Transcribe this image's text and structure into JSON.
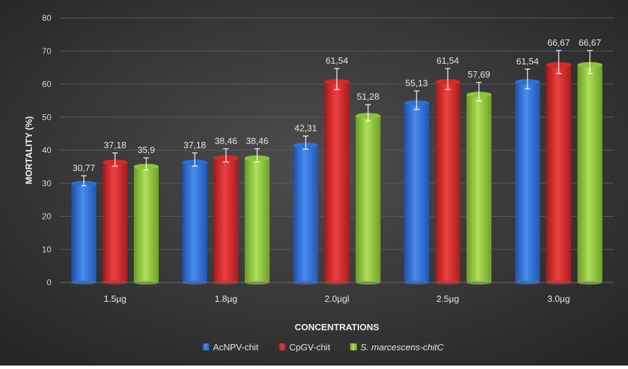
{
  "chart_data": {
    "type": "bar",
    "title": "",
    "xlabel": "CONCENTRATIONS",
    "ylabel": "MORTALITY (%)",
    "ylim": [
      0,
      80
    ],
    "yticks": [
      0,
      10,
      20,
      30,
      40,
      50,
      60,
      70,
      80
    ],
    "grid": "horizontal",
    "legend_position": "bottom",
    "categories": [
      "1.5µg",
      "1.8µg",
      "2.0µgl",
      "2.5µg",
      "3.0µg"
    ],
    "series": [
      {
        "name": "AcNPV-chit",
        "color": "#2f6fd6",
        "values": [
          30.77,
          37.18,
          42.31,
          55.13,
          61.54
        ],
        "labels": [
          "30,77",
          "37,18",
          "42,31",
          "55,13",
          "61,54"
        ],
        "error": [
          1.5,
          2.0,
          2.0,
          2.8,
          3.0
        ]
      },
      {
        "name": "CpGV-chit",
        "color": "#d42a2a",
        "values": [
          37.18,
          38.46,
          61.54,
          61.54,
          66.67
        ],
        "labels": [
          "37,18",
          "38,46",
          "61,54",
          "61,54",
          "66,67"
        ],
        "error": [
          2.0,
          2.0,
          3.2,
          3.2,
          3.5
        ]
      },
      {
        "name": "S. marcescens-chitC",
        "name_italic": true,
        "color": "#8fc33a",
        "values": [
          35.9,
          38.46,
          51.28,
          57.69,
          66.67
        ],
        "labels": [
          "35,9",
          "38,46",
          "51,28",
          "57,69",
          "66,67"
        ],
        "error": [
          1.8,
          2.0,
          2.5,
          2.8,
          3.5
        ]
      }
    ]
  },
  "colors": {
    "background_outer": "#2b2b2b",
    "background_center": "#4a4a4a",
    "gridline": "#5a5a5a",
    "errorbar": "#ffffff"
  }
}
